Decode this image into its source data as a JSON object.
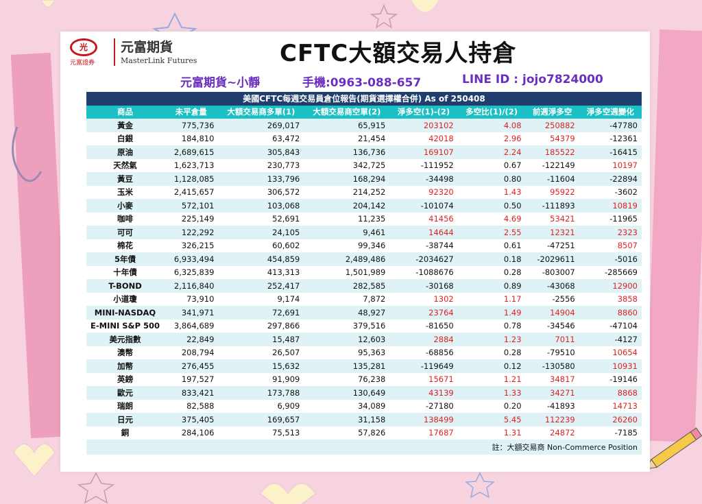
{
  "brand": {
    "logo_mark": "光",
    "logo_sub": "元富證券",
    "name_cn": "元富期貨",
    "name_en": "MasterLink Futures"
  },
  "title": "CFTC大額交易人持倉",
  "contact": {
    "agent": "元富期貨~小靜",
    "phone": "手機:0963-088-657",
    "line": "LINE ID : jojo7824000"
  },
  "table": {
    "header": "美國CFTC每週交易員倉位報告(期貨選擇權合併) As of  250408",
    "columns": [
      "商品",
      "未平倉量",
      "大額交易商多單(1)",
      "大額交易商空單(2)",
      "淨多空(1)-(2)",
      "多空比(1)/(2)",
      "前週淨多空",
      "淨多空週變化"
    ],
    "rows": [
      [
        "黃金",
        "775,736",
        "269,017",
        "65,915",
        "203102",
        "4.08",
        "250882",
        "-47780"
      ],
      [
        "白銀",
        "184,810",
        "63,472",
        "21,454",
        "42018",
        "2.96",
        "54379",
        "-12361"
      ],
      [
        "原油",
        "2,689,615",
        "305,843",
        "136,736",
        "169107",
        "2.24",
        "185522",
        "-16415"
      ],
      [
        "天然氣",
        "1,623,713",
        "230,773",
        "342,725",
        "-111952",
        "0.67",
        "-122149",
        "10197"
      ],
      [
        "黃豆",
        "1,128,085",
        "133,796",
        "168,294",
        "-34498",
        "0.80",
        "-11604",
        "-22894"
      ],
      [
        "玉米",
        "2,415,657",
        "306,572",
        "214,252",
        "92320",
        "1.43",
        "95922",
        "-3602"
      ],
      [
        "小麥",
        "572,101",
        "103,068",
        "204,142",
        "-101074",
        "0.50",
        "-111893",
        "10819"
      ],
      [
        "咖啡",
        "225,149",
        "52,691",
        "11,235",
        "41456",
        "4.69",
        "53421",
        "-11965"
      ],
      [
        "可可",
        "122,292",
        "24,105",
        "9,461",
        "14644",
        "2.55",
        "12321",
        "2323"
      ],
      [
        "棉花",
        "326,215",
        "60,602",
        "99,346",
        "-38744",
        "0.61",
        "-47251",
        "8507"
      ],
      [
        "5年債",
        "6,933,494",
        "454,859",
        "2,489,486",
        "-2034627",
        "0.18",
        "-2029611",
        "-5016"
      ],
      [
        "十年債",
        "6,325,839",
        "413,313",
        "1,501,989",
        "-1088676",
        "0.28",
        "-803007",
        "-285669"
      ],
      [
        "T-BOND",
        "2,116,840",
        "252,417",
        "282,585",
        "-30168",
        "0.89",
        "-43068",
        "12900"
      ],
      [
        "小道瓊",
        "73,910",
        "9,174",
        "7,872",
        "1302",
        "1.17",
        "-2556",
        "3858"
      ],
      [
        "MINI-NASDAQ",
        "341,971",
        "72,691",
        "48,927",
        "23764",
        "1.49",
        "14904",
        "8860"
      ],
      [
        "E-MINI S&P 500",
        "3,864,689",
        "297,866",
        "379,516",
        "-81650",
        "0.78",
        "-34546",
        "-47104"
      ],
      [
        "美元指數",
        "22,849",
        "15,487",
        "12,603",
        "2884",
        "1.23",
        "7011",
        "-4127"
      ],
      [
        "澳幣",
        "208,794",
        "26,507",
        "95,363",
        "-68856",
        "0.28",
        "-79510",
        "10654"
      ],
      [
        "加幣",
        "276,455",
        "15,632",
        "135,281",
        "-119649",
        "0.12",
        "-130580",
        "10931"
      ],
      [
        "英鎊",
        "197,527",
        "91,909",
        "76,238",
        "15671",
        "1.21",
        "34817",
        "-19146"
      ],
      [
        "歐元",
        "833,421",
        "173,788",
        "130,649",
        "43139",
        "1.33",
        "34271",
        "8868"
      ],
      [
        "瑞朗",
        "82,588",
        "6,909",
        "34,089",
        "-27180",
        "0.20",
        "-41893",
        "14713"
      ],
      [
        "日元",
        "375,405",
        "169,657",
        "31,158",
        "138499",
        "5.45",
        "112239",
        "26260"
      ],
      [
        "銅",
        "284,106",
        "75,513",
        "57,826",
        "17687",
        "1.31",
        "24872",
        "-7185"
      ]
    ],
    "footnote": "註：大額交易商 Non-Commerce Position"
  },
  "colors": {
    "background": "#f7d3e0",
    "header_navy": "#1f3e6d",
    "column_teal": "#1ac0c4",
    "stripe": "#dff3f6",
    "positive_red": "#e02020",
    "contact_purple": "#6b2fbf"
  }
}
